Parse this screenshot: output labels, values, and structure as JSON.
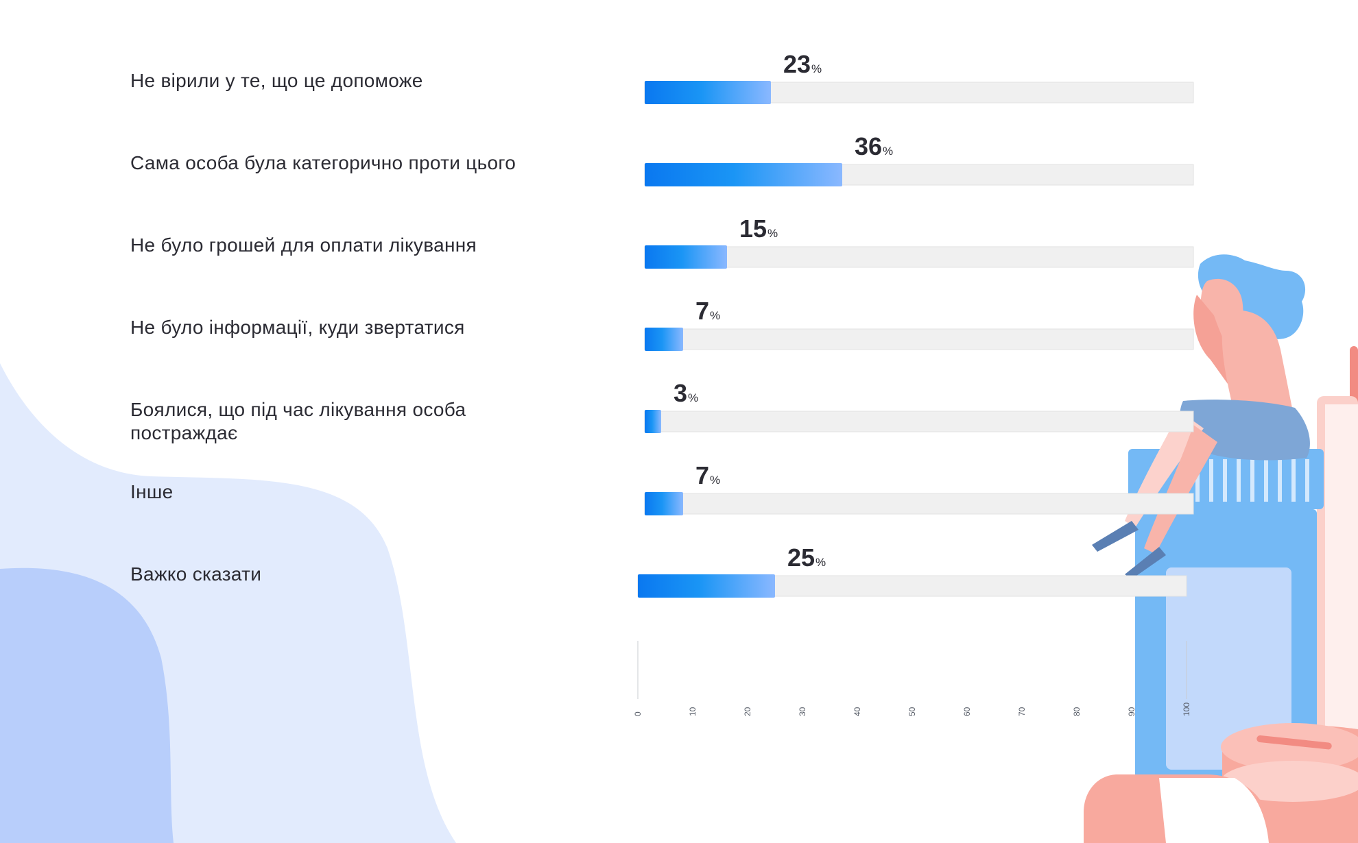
{
  "chart_data": {
    "type": "bar",
    "orientation": "horizontal",
    "categories": [
      "Не вірили у те, що це допоможе",
      "Сама особа була категорично проти цього",
      "Не було грошей для оплати лікування",
      "Не було інформації, куди звертатися",
      "Боялися, що під час лікування особа постраждає",
      "Інше",
      "Важко сказати"
    ],
    "values": [
      23,
      36,
      15,
      7,
      3,
      7,
      25
    ],
    "unit": "%",
    "xlim": [
      0,
      100
    ],
    "xticks": [
      "0",
      "10",
      "20",
      "30",
      "40",
      "50",
      "60",
      "70",
      "80",
      "90",
      "100"
    ],
    "title": "",
    "xlabel": "",
    "ylabel": "",
    "grid": false,
    "legend": "none"
  },
  "colors": {
    "bar_gradient_start": "#0a78f0",
    "bar_gradient_mid": "#1a95f5",
    "bar_gradient_end": "#8ab8ff",
    "track": "#f0f0f0",
    "text": "#2b2b33",
    "blob_light": "#e2ebfd",
    "blob_dark": "#b8cefb",
    "illustration_blue": "#74b9f5",
    "illustration_pink": "#f8a99e"
  }
}
